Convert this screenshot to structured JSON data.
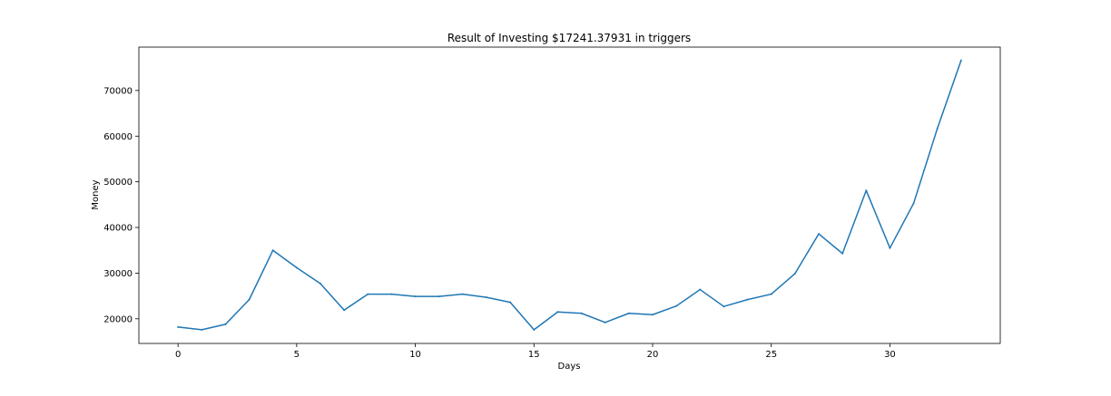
{
  "chart_data": {
    "type": "line",
    "title": "Result of Investing $17241.37931 in triggers",
    "xlabel": "Days",
    "ylabel": "Money",
    "xlim": [
      -1.65,
      34.65
    ],
    "ylim": [
      14600,
      79500
    ],
    "xticks": [
      0,
      5,
      10,
      15,
      20,
      25,
      30
    ],
    "yticks": [
      20000,
      30000,
      40000,
      50000,
      60000,
      70000
    ],
    "grid": false,
    "series": [
      {
        "color": "#1f77b4",
        "x": [
          0,
          1,
          2,
          3,
          4,
          5,
          6,
          7,
          8,
          9,
          10,
          11,
          12,
          13,
          14,
          15,
          16,
          17,
          18,
          19,
          20,
          21,
          22,
          23,
          24,
          25,
          26,
          27,
          28,
          29,
          30,
          31,
          32,
          33
        ],
        "y": [
          18200,
          17600,
          18800,
          24200,
          35000,
          31200,
          27700,
          21900,
          25400,
          25400,
          24900,
          24900,
          25400,
          24700,
          23600,
          17600,
          21500,
          21200,
          19200,
          21200,
          20900,
          22800,
          26400,
          22700,
          24200,
          25400,
          29900,
          38600,
          34300,
          48100,
          35500,
          45300,
          61700,
          76600
        ]
      }
    ]
  }
}
